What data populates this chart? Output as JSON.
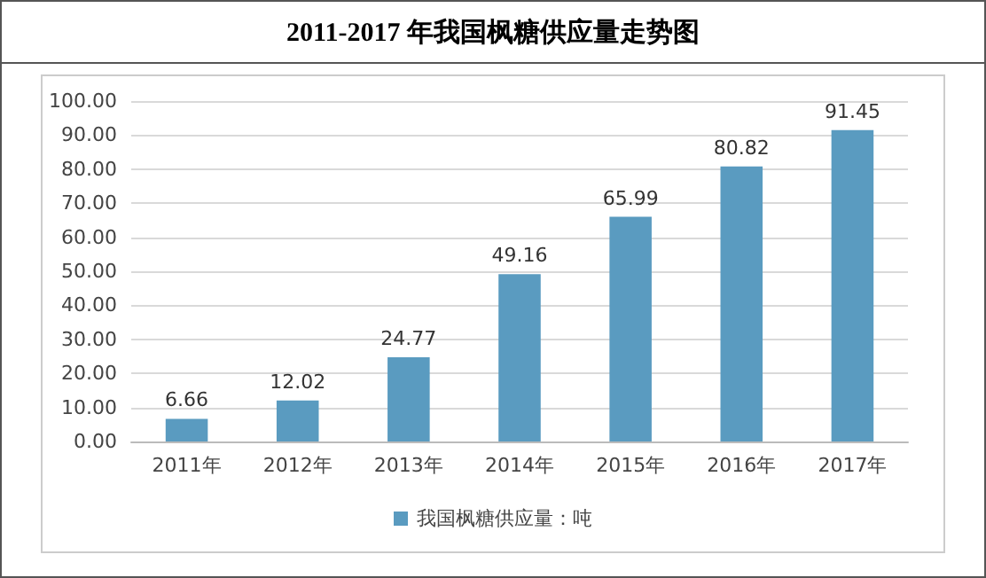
{
  "chart_data": {
    "type": "bar",
    "title": "2011-2017 年我国枫糖供应量走势图",
    "categories": [
      "2011年",
      "2012年",
      "2013年",
      "2014年",
      "2015年",
      "2016年",
      "2017年"
    ],
    "series": [
      {
        "name": "我国枫糖供应量：吨",
        "color": "#5a9bc0",
        "values": [
          6.66,
          12.02,
          24.77,
          49.16,
          65.99,
          80.82,
          91.45
        ]
      }
    ],
    "ylim": [
      0,
      100
    ],
    "yticks": [
      {
        "value": 0,
        "label": "0.00"
      },
      {
        "value": 10,
        "label": "10.00"
      },
      {
        "value": 20,
        "label": "20.00"
      },
      {
        "value": 30,
        "label": "30.00"
      },
      {
        "value": 40,
        "label": "40.00"
      },
      {
        "value": 50,
        "label": "50.00"
      },
      {
        "value": 60,
        "label": "60.00"
      },
      {
        "value": 70,
        "label": "70.00"
      },
      {
        "value": 80,
        "label": "80.00"
      },
      {
        "value": 90,
        "label": "90.00"
      },
      {
        "value": 100,
        "label": "100.00"
      }
    ],
    "grid": "y",
    "legend": "bottom",
    "data_labels": true
  }
}
